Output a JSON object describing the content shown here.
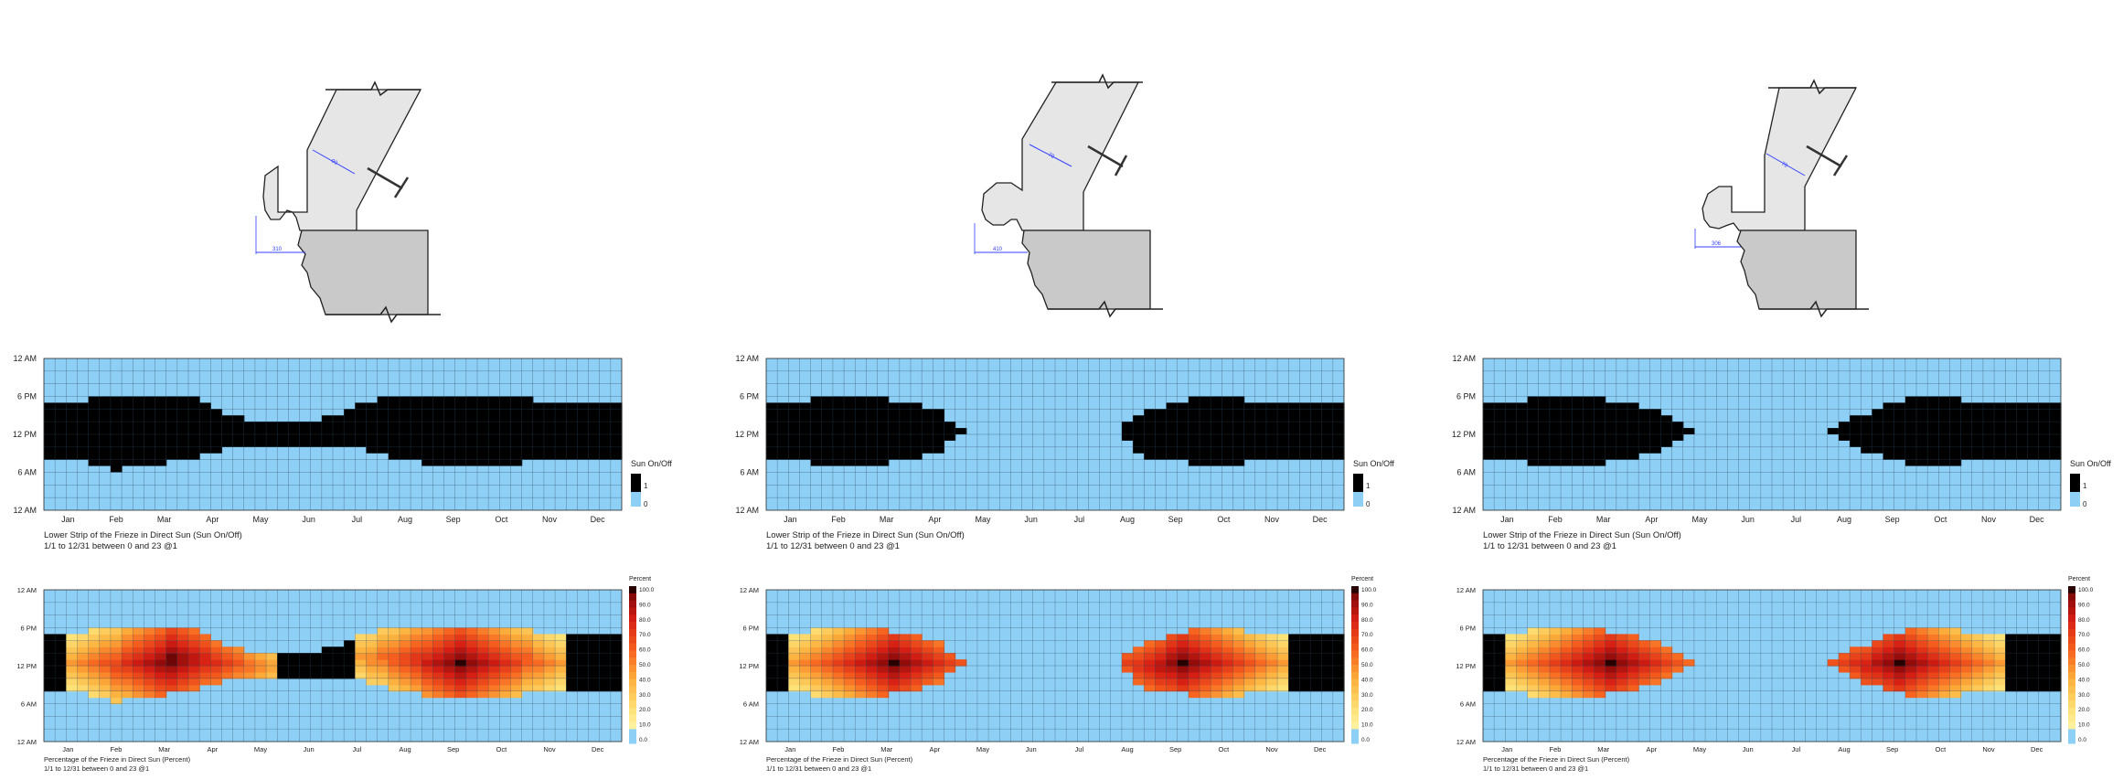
{
  "panels": [
    {
      "section": {
        "dim_upper": "90",
        "dim_lower": "310"
      },
      "onoff": {
        "title": "Lower Strip of the Frieze in Direct Sun (Sun On/Off)",
        "subtitle": "1/1 to 12/31 between 0 and 23 @1",
        "legend_title": "Sun On/Off",
        "legend_max": "1",
        "legend_min": "0"
      },
      "percent": {
        "title": "Percentage of the Frieze in Direct Sun (Percent)",
        "subtitle": "1/1 to 12/31 between 0 and 23 @1",
        "legend_title": "Percent"
      }
    },
    {
      "section": {
        "dim_upper": "70",
        "dim_lower": "410"
      },
      "onoff": {
        "title": "Lower Strip of the Frieze in Direct Sun (Sun On/Off)",
        "subtitle": "1/1 to 12/31 between 0 and 23 @1",
        "legend_title": "Sun On/Off",
        "legend_max": "1",
        "legend_min": "0"
      },
      "percent": {
        "title": "Percentage of the Frieze in Direct Sun (Percent)",
        "subtitle": "1/1 to 12/31 between 0 and 23 @1",
        "legend_title": "Percent"
      }
    },
    {
      "section": {
        "dim_upper": "70",
        "dim_lower": "306"
      },
      "onoff": {
        "title": "Lower Strip of the Frieze in Direct Sun (Sun On/Off)",
        "subtitle": "1/1 to 12/31 between 0 and 23 @1",
        "legend_title": "Sun On/Off",
        "legend_max": "1",
        "legend_min": "0"
      },
      "percent": {
        "title": "Percentage of the Frieze in Direct Sun (Percent)",
        "subtitle": "1/1 to 12/31 between 0 and 23 @1",
        "legend_title": "Percent"
      }
    }
  ],
  "chart_data": [
    {
      "type": "heatmap",
      "title": "Lower Strip of the Frieze in Direct Sun (Sun On/Off)",
      "subtitle": "1/1 to 12/31 between 0 and 23 @1",
      "x_categories": [
        "Jan",
        "Feb",
        "Mar",
        "Apr",
        "May",
        "Jun",
        "Jul",
        "Aug",
        "Sep",
        "Oct",
        "Nov",
        "Dec"
      ],
      "y_ticks": [
        "12 AM",
        "6 PM",
        "12 PM",
        "6 AM",
        "12 AM"
      ],
      "value_range": [
        0,
        1
      ],
      "legend": {
        "title": "Sun On/Off",
        "entries": [
          "1",
          "0"
        ],
        "colors": [
          "#000000",
          "#8ecff5"
        ]
      },
      "sun_window_by_week": {
        "start_hour": [
          8,
          8,
          8,
          8,
          7,
          7,
          6,
          7,
          7,
          7,
          7,
          8,
          8,
          8,
          9,
          9,
          10,
          10,
          10,
          10,
          10,
          10,
          10,
          10,
          10,
          10,
          10,
          10,
          10,
          9,
          9,
          8,
          8,
          8,
          7,
          7,
          7,
          7,
          7,
          7,
          7,
          7,
          7,
          8,
          8,
          8,
          8,
          8,
          8,
          8,
          8,
          8
        ],
        "end_hour": [
          17,
          17,
          17,
          17,
          18,
          18,
          18,
          18,
          18,
          18,
          18,
          18,
          18,
          18,
          17,
          16,
          15,
          15,
          14,
          14,
          14,
          14,
          14,
          14,
          14,
          15,
          15,
          16,
          17,
          17,
          18,
          18,
          18,
          18,
          18,
          18,
          18,
          18,
          18,
          18,
          18,
          18,
          18,
          18,
          17,
          17,
          17,
          17,
          17,
          17,
          17,
          17
        ]
      }
    },
    {
      "type": "heatmap",
      "title": "Percentage of the Frieze in Direct Sun (Percent)",
      "subtitle": "1/1 to 12/31 between 0 and 23 @1",
      "x_categories": [
        "Jan",
        "Feb",
        "Mar",
        "Apr",
        "May",
        "Jun",
        "Jul",
        "Aug",
        "Sep",
        "Oct",
        "Nov",
        "Dec"
      ],
      "y_ticks": [
        "12 AM",
        "6 PM",
        "12 PM",
        "6 AM",
        "12 AM"
      ],
      "value_range": [
        0,
        100
      ],
      "legend": {
        "title": "Percent",
        "ticks": [
          "100.0",
          "90.0",
          "80.0",
          "70.0",
          "60.0",
          "50.0",
          "40.0",
          "30.0",
          "20.0",
          "10.0",
          "0.0"
        ]
      },
      "peaks": [
        {
          "month": "Mar",
          "max_percent": 100
        },
        {
          "month": "Sep",
          "max_percent": 100
        }
      ],
      "min_percent_in_sun": 20
    },
    {
      "type": "heatmap",
      "title": "Lower Strip of the Frieze in Direct Sun (Sun On/Off)",
      "subtitle": "1/1 to 12/31 between 0 and 23 @1",
      "x_categories": [
        "Jan",
        "Feb",
        "Mar",
        "Apr",
        "May",
        "Jun",
        "Jul",
        "Aug",
        "Sep",
        "Oct",
        "Nov",
        "Dec"
      ],
      "y_ticks": [
        "12 AM",
        "6 PM",
        "12 PM",
        "6 AM",
        "12 AM"
      ],
      "value_range": [
        0,
        1
      ],
      "legend": {
        "title": "Sun On/Off",
        "entries": [
          "1",
          "0"
        ],
        "colors": [
          "#000000",
          "#8ecff5"
        ]
      },
      "sun_window_by_week": {
        "start_hour": [
          8,
          8,
          8,
          8,
          7,
          7,
          7,
          7,
          7,
          7,
          7,
          8,
          8,
          8,
          9,
          9,
          11,
          12,
          24,
          24,
          24,
          24,
          24,
          24,
          24,
          24,
          24,
          24,
          24,
          24,
          24,
          24,
          11,
          9,
          8,
          8,
          8,
          8,
          7,
          7,
          7,
          7,
          7,
          8,
          8,
          8,
          8,
          8,
          8,
          8,
          8,
          8
        ],
        "end_hour": [
          17,
          17,
          17,
          17,
          18,
          18,
          18,
          18,
          18,
          18,
          18,
          17,
          17,
          17,
          16,
          16,
          14,
          13,
          0,
          0,
          0,
          0,
          0,
          0,
          0,
          0,
          0,
          0,
          0,
          0,
          0,
          0,
          14,
          15,
          16,
          16,
          17,
          17,
          18,
          18,
          18,
          18,
          18,
          17,
          17,
          17,
          17,
          17,
          17,
          17,
          17,
          17
        ]
      }
    },
    {
      "type": "heatmap",
      "title": "Percentage of the Frieze in Direct Sun (Percent)",
      "subtitle": "1/1 to 12/31 between 0 and 23 @1",
      "x_categories": [
        "Jan",
        "Feb",
        "Mar",
        "Apr",
        "May",
        "Jun",
        "Jul",
        "Aug",
        "Sep",
        "Oct",
        "Nov",
        "Dec"
      ],
      "y_ticks": [
        "12 AM",
        "6 PM",
        "12 PM",
        "6 AM",
        "12 AM"
      ],
      "value_range": [
        0,
        100
      ],
      "legend": {
        "title": "Percent",
        "ticks": [
          "100.0",
          "90.0",
          "80.0",
          "70.0",
          "60.0",
          "50.0",
          "40.0",
          "30.0",
          "20.0",
          "10.0",
          "0.0"
        ]
      },
      "peaks": [
        {
          "month": "Mar",
          "max_percent": 100
        },
        {
          "month": "Sep",
          "max_percent": 100
        }
      ],
      "min_percent_in_sun": 20
    },
    {
      "type": "heatmap",
      "title": "Lower Strip of the Frieze in Direct Sun (Sun On/Off)",
      "subtitle": "1/1 to 12/31 between 0 and 23 @1",
      "x_categories": [
        "Jan",
        "Feb",
        "Mar",
        "Apr",
        "May",
        "Jun",
        "Jul",
        "Aug",
        "Sep",
        "Oct",
        "Nov",
        "Dec"
      ],
      "y_ticks": [
        "12 AM",
        "6 PM",
        "12 PM",
        "6 AM",
        "12 AM"
      ],
      "value_range": [
        0,
        1
      ],
      "legend": {
        "title": "Sun On/Off",
        "entries": [
          "1",
          "0"
        ],
        "colors": [
          "#000000",
          "#8ecff5"
        ]
      },
      "sun_window_by_week": {
        "start_hour": [
          8,
          8,
          8,
          8,
          7,
          7,
          7,
          7,
          7,
          7,
          7,
          8,
          8,
          8,
          9,
          9,
          10,
          11,
          12,
          24,
          24,
          24,
          24,
          24,
          24,
          24,
          24,
          24,
          24,
          24,
          24,
          12,
          11,
          10,
          9,
          9,
          8,
          8,
          7,
          7,
          7,
          7,
          7,
          8,
          8,
          8,
          8,
          8,
          8,
          8,
          8,
          8
        ],
        "end_hour": [
          17,
          17,
          17,
          17,
          18,
          18,
          18,
          18,
          18,
          18,
          18,
          17,
          17,
          17,
          16,
          16,
          15,
          14,
          13,
          0,
          0,
          0,
          0,
          0,
          0,
          0,
          0,
          0,
          0,
          0,
          0,
          13,
          14,
          15,
          15,
          16,
          17,
          17,
          18,
          18,
          18,
          18,
          18,
          17,
          17,
          17,
          17,
          17,
          17,
          17,
          17,
          17
        ]
      }
    },
    {
      "type": "heatmap",
      "title": "Percentage of the Frieze in Direct Sun (Percent)",
      "subtitle": "1/1 to 12/31 between 0 and 23 @1",
      "x_categories": [
        "Jan",
        "Feb",
        "Mar",
        "Apr",
        "May",
        "Jun",
        "Jul",
        "Aug",
        "Sep",
        "Oct",
        "Nov",
        "Dec"
      ],
      "y_ticks": [
        "12 AM",
        "6 PM",
        "12 PM",
        "6 AM",
        "12 AM"
      ],
      "value_range": [
        0,
        100
      ],
      "legend": {
        "title": "Percent",
        "ticks": [
          "100.0",
          "90.0",
          "80.0",
          "70.0",
          "60.0",
          "50.0",
          "40.0",
          "30.0",
          "20.0",
          "10.0",
          "0.0"
        ]
      },
      "peaks": [
        {
          "month": "Mar",
          "max_percent": 100
        },
        {
          "month": "Sep",
          "max_percent": 100
        }
      ],
      "min_percent_in_sun": 20
    }
  ]
}
